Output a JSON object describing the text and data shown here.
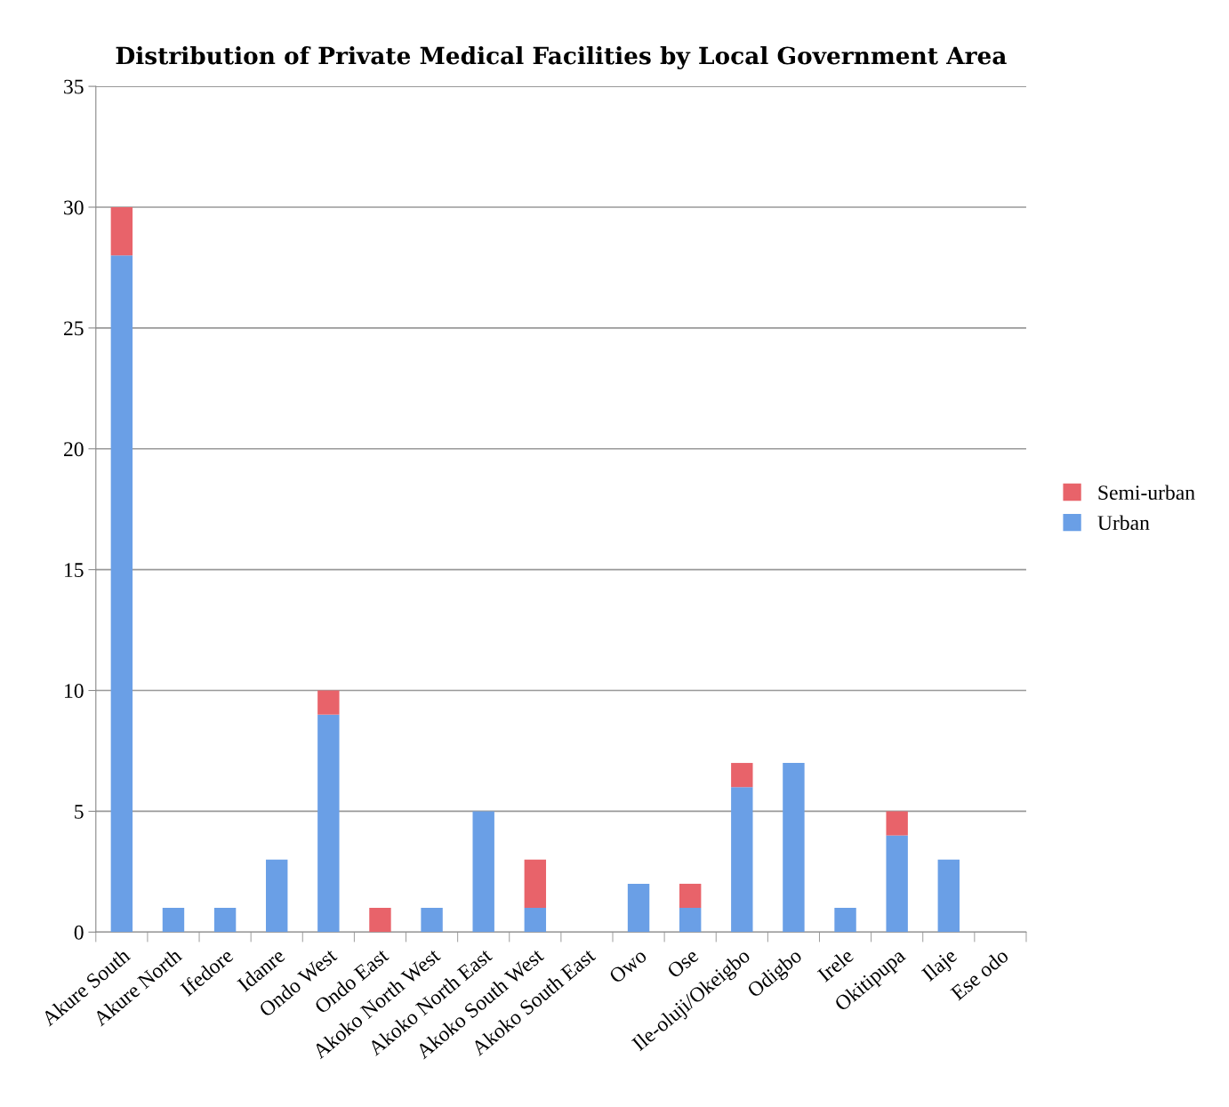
{
  "chart_data": {
    "type": "bar",
    "title": "Distribution of Private Medical Facilities by Local Government Area",
    "categories": [
      "Akure South",
      "Akure North",
      "Ifedore",
      "Idanre",
      "Ondo West",
      "Ondo East",
      "Akoko North West",
      "Akoko North East",
      "Akoko South West",
      "Akoko South East",
      "Owo",
      "Ose",
      "Ile-oluji/Okeigbo",
      "Odigbo",
      "Irele",
      "Okitipupa",
      "Ilaje",
      "Ese odo"
    ],
    "series": [
      {
        "name": "Urban",
        "color": "#6a9fe6",
        "values": [
          28,
          1,
          1,
          3,
          9,
          0,
          1,
          5,
          1,
          0,
          2,
          1,
          6,
          7,
          1,
          4,
          3,
          0
        ]
      },
      {
        "name": "Semi-urban",
        "color": "#e8636a",
        "values": [
          2,
          0,
          0,
          0,
          1,
          1,
          0,
          0,
          2,
          0,
          0,
          1,
          1,
          0,
          0,
          1,
          0,
          0
        ]
      }
    ],
    "stacked": true,
    "ylim": [
      0,
      35
    ],
    "yticks": [
      0,
      5,
      10,
      15,
      20,
      25,
      30,
      35
    ],
    "grid": "y",
    "legend": "right"
  }
}
